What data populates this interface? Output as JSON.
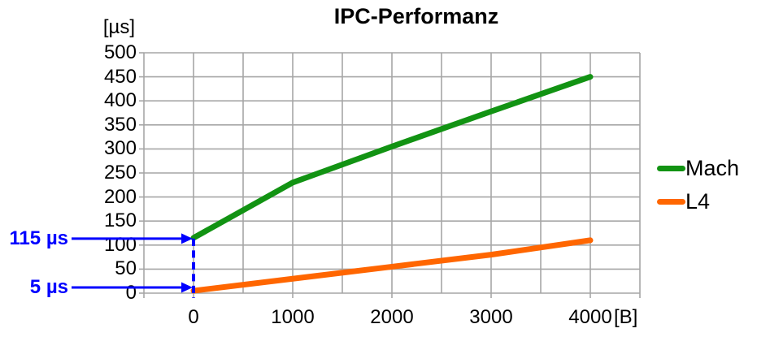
{
  "chart_data": {
    "type": "line",
    "title": "IPC-Performanz",
    "x": [
      0,
      1000,
      2000,
      3000,
      4000
    ],
    "series": [
      {
        "name": "Mach",
        "color": "#129313",
        "values": [
          115,
          230,
          305,
          378,
          450
        ]
      },
      {
        "name": "L4",
        "color": "#FF6600",
        "values": [
          5,
          30,
          55,
          80,
          110
        ]
      }
    ],
    "x_axis": {
      "unit_label": "[B]",
      "ticks": [
        0,
        1000,
        2000,
        3000,
        4000
      ],
      "min": -500,
      "max": 4500,
      "grid_step": 500
    },
    "y_axis": {
      "unit_label": "[µs]",
      "ticks": [
        0,
        50,
        100,
        150,
        200,
        250,
        300,
        350,
        400,
        450,
        500
      ],
      "min": 0,
      "max": 500,
      "grid_step": 50
    },
    "grid": true,
    "legend": {
      "position": "right",
      "entries": [
        "Mach",
        "L4"
      ]
    },
    "annotations": [
      {
        "label": "115 µs",
        "series": "Mach",
        "x": 0,
        "value": 115
      },
      {
        "label": "5 µs",
        "series": "L4",
        "x": 0,
        "value": 5
      }
    ]
  },
  "colors": {
    "background": "#FFFFFF",
    "grid": "#A6A6A6",
    "annotation": "#0000FF",
    "text": "#000000"
  }
}
